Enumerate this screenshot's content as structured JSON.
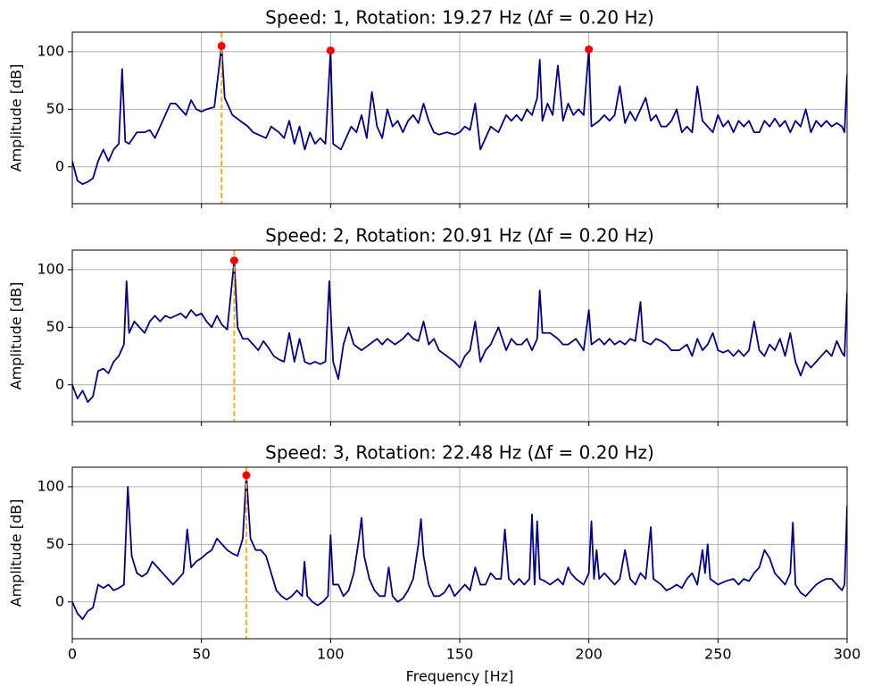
{
  "chart_data": [
    {
      "type": "line",
      "title": "Speed: 1, Rotation: 19.27 Hz (Δf = 0.20 Hz)",
      "ylabel": "Amplitude [dB]",
      "color": "#00008b",
      "x": [
        0,
        2,
        4,
        6,
        8,
        10,
        12,
        14,
        16,
        18,
        19.3,
        20.5,
        22,
        25,
        28,
        30,
        32,
        35,
        38,
        40,
        42,
        44,
        46,
        48,
        50,
        52,
        55,
        57.8,
        59,
        62,
        65,
        68,
        70,
        72,
        75,
        77,
        80,
        82,
        84,
        86,
        88,
        90,
        92,
        94,
        96,
        98,
        100,
        101,
        104,
        106,
        108,
        110,
        112,
        114,
        116,
        118,
        120,
        122,
        124,
        126,
        128,
        130,
        132,
        134,
        136,
        138,
        140,
        142,
        145,
        148,
        150,
        152,
        154,
        156,
        158,
        160,
        162,
        165,
        168,
        170,
        172,
        174,
        176,
        178,
        180,
        181,
        182,
        184,
        186,
        188,
        190,
        192,
        194,
        196,
        198,
        200,
        201,
        204,
        206,
        208,
        210,
        212,
        214,
        216,
        218,
        220,
        222,
        224,
        226,
        228,
        230,
        232,
        234,
        236,
        238,
        240,
        242,
        244,
        246,
        248,
        250,
        252,
        254,
        256,
        258,
        260,
        262,
        264,
        266,
        268,
        270,
        272,
        274,
        276,
        278,
        280,
        282,
        284,
        286,
        288,
        290,
        292,
        294,
        296,
        298,
        299,
        300
      ],
      "values": [
        5,
        -12,
        -15,
        -13,
        -10,
        5,
        15,
        5,
        15,
        20,
        85,
        22,
        20,
        30,
        30,
        32,
        25,
        40,
        55,
        55,
        50,
        45,
        58,
        50,
        48,
        50,
        52,
        105,
        60,
        45,
        40,
        35,
        30,
        28,
        25,
        35,
        30,
        25,
        40,
        20,
        35,
        15,
        30,
        20,
        25,
        20,
        101,
        20,
        15,
        25,
        35,
        30,
        45,
        25,
        65,
        35,
        25,
        50,
        35,
        40,
        30,
        40,
        45,
        38,
        55,
        40,
        30,
        28,
        30,
        28,
        30,
        35,
        32,
        55,
        15,
        25,
        35,
        30,
        45,
        40,
        45,
        40,
        50,
        45,
        60,
        93,
        40,
        55,
        45,
        88,
        40,
        55,
        45,
        50,
        45,
        102,
        35,
        40,
        45,
        40,
        45,
        70,
        38,
        48,
        40,
        50,
        60,
        40,
        45,
        35,
        35,
        40,
        50,
        30,
        35,
        30,
        70,
        40,
        35,
        30,
        45,
        35,
        40,
        30,
        40,
        35,
        40,
        30,
        30,
        40,
        35,
        42,
        35,
        40,
        30,
        40,
        35,
        50,
        30,
        40,
        35,
        40,
        35,
        38,
        35,
        30,
        80
      ],
      "markers": {
        "x": [
          57.8,
          100,
          200
        ],
        "values": [
          105,
          101,
          102
        ],
        "color": "red"
      },
      "vline": {
        "x": 57.8,
        "color": "orange"
      },
      "xlim": [
        0,
        300
      ],
      "ylim": [
        -32,
        117
      ],
      "xticks": [
        0,
        50,
        100,
        150,
        200,
        250,
        300
      ],
      "yticks": [
        0,
        50,
        100
      ],
      "grid": true,
      "xtick_labels": false
    },
    {
      "type": "line",
      "title": "Speed: 2, Rotation: 20.91 Hz (Δf = 0.20 Hz)",
      "ylabel": "Amplitude [dB]",
      "color": "#00008b",
      "x": [
        0,
        2,
        4,
        6,
        8,
        10,
        12,
        14,
        16,
        18,
        20,
        21,
        22,
        24,
        26,
        28,
        30,
        32,
        34,
        36,
        38,
        40,
        42,
        44,
        46,
        48,
        50,
        52,
        54,
        56,
        58,
        60,
        62.7,
        64,
        66,
        68,
        70,
        72,
        74,
        76,
        78,
        80,
        82,
        84,
        86,
        88,
        90,
        92,
        94,
        96,
        98,
        99.5,
        101,
        103,
        105,
        107,
        109,
        112,
        115,
        118,
        120,
        122,
        125,
        128,
        130,
        132,
        134,
        136,
        138,
        140,
        142,
        145,
        148,
        150,
        152,
        154,
        156,
        158,
        160,
        162,
        165,
        168,
        170,
        172,
        174,
        176,
        178,
        180,
        181,
        182,
        185,
        188,
        190,
        192,
        195,
        198,
        200,
        201,
        204,
        206,
        208,
        210,
        212,
        214,
        216,
        218,
        220,
        221,
        224,
        226,
        228,
        230,
        232,
        235,
        238,
        240,
        242,
        244,
        246,
        248,
        250,
        252,
        254,
        256,
        258,
        260,
        262,
        264,
        266,
        268,
        270,
        272,
        274,
        276,
        278,
        280,
        282,
        284,
        286,
        288,
        290,
        292,
        294,
        296,
        298,
        299,
        300
      ],
      "values": [
        0,
        -12,
        -5,
        -15,
        -10,
        12,
        14,
        10,
        20,
        25,
        35,
        90,
        45,
        55,
        50,
        45,
        55,
        60,
        55,
        60,
        58,
        60,
        62,
        58,
        65,
        60,
        62,
        55,
        50,
        60,
        52,
        48,
        108,
        50,
        40,
        40,
        35,
        30,
        38,
        32,
        25,
        22,
        20,
        45,
        20,
        40,
        20,
        18,
        20,
        18,
        20,
        90,
        20,
        5,
        35,
        50,
        35,
        30,
        35,
        40,
        35,
        40,
        35,
        40,
        45,
        40,
        38,
        55,
        35,
        40,
        30,
        25,
        20,
        15,
        25,
        30,
        55,
        20,
        30,
        35,
        50,
        30,
        40,
        35,
        35,
        40,
        30,
        40,
        82,
        45,
        45,
        40,
        35,
        35,
        40,
        30,
        65,
        35,
        40,
        35,
        40,
        35,
        38,
        35,
        40,
        38,
        72,
        38,
        35,
        40,
        38,
        35,
        30,
        30,
        35,
        25,
        40,
        30,
        35,
        45,
        30,
        28,
        30,
        25,
        30,
        25,
        30,
        55,
        30,
        25,
        35,
        30,
        40,
        25,
        45,
        20,
        8,
        20,
        15,
        20,
        25,
        30,
        25,
        38,
        28,
        25,
        80
      ],
      "markers": {
        "x": [
          62.7
        ],
        "values": [
          108
        ],
        "color": "red"
      },
      "vline": {
        "x": 62.7,
        "color": "orange"
      },
      "xlim": [
        0,
        300
      ],
      "ylim": [
        -32,
        117
      ],
      "xticks": [
        0,
        50,
        100,
        150,
        200,
        250,
        300
      ],
      "yticks": [
        0,
        50,
        100
      ],
      "grid": true,
      "xtick_labels": false
    },
    {
      "type": "line",
      "title": "Speed: 3, Rotation: 22.48 Hz (Δf = 0.20 Hz)",
      "ylabel": "Amplitude [dB]",
      "xlabel": "Frequency [Hz]",
      "color": "#00008b",
      "x": [
        0,
        2,
        4,
        6,
        8,
        10,
        12,
        14,
        16,
        18,
        20,
        21.5,
        23,
        25,
        27,
        29,
        31,
        33,
        35,
        37,
        39,
        41,
        43,
        44.5,
        46,
        48,
        50,
        52,
        54,
        56,
        58,
        60,
        62,
        64,
        66,
        67.4,
        69,
        71,
        73,
        75,
        77,
        79,
        81,
        83,
        85,
        87,
        89,
        89.9,
        91,
        93,
        95,
        97,
        99,
        100,
        101,
        103,
        105,
        107,
        109,
        111,
        112,
        113,
        115,
        117,
        119,
        121,
        122.5,
        124,
        126,
        128,
        130,
        132,
        134,
        135,
        136,
        138,
        140,
        142,
        144,
        146,
        148,
        150,
        152,
        154,
        156,
        158,
        160,
        162,
        164,
        166,
        167.5,
        169,
        171,
        173,
        175,
        177,
        178,
        179,
        180,
        181,
        183,
        185,
        188,
        190,
        192,
        193,
        195,
        198,
        200,
        201,
        202,
        203,
        204,
        206,
        208,
        210,
        212,
        214,
        216,
        218,
        220,
        222,
        224,
        225,
        228,
        230,
        232,
        234,
        236,
        238,
        240,
        242,
        244,
        245,
        246,
        247,
        250,
        253,
        256,
        258,
        260,
        262,
        264,
        266,
        268,
        270,
        272,
        274,
        276,
        278,
        279,
        280,
        282,
        284,
        286,
        288,
        290,
        292,
        294,
        296,
        298,
        299,
        300
      ],
      "values": [
        0,
        -10,
        -15,
        -8,
        -5,
        15,
        12,
        15,
        10,
        12,
        15,
        100,
        40,
        25,
        22,
        25,
        35,
        30,
        25,
        20,
        15,
        20,
        25,
        63,
        30,
        35,
        38,
        42,
        45,
        55,
        50,
        45,
        42,
        40,
        55,
        110,
        55,
        45,
        45,
        40,
        25,
        10,
        5,
        2,
        5,
        10,
        5,
        35,
        5,
        0,
        -3,
        0,
        5,
        58,
        15,
        15,
        5,
        10,
        25,
        55,
        73,
        40,
        20,
        10,
        5,
        5,
        30,
        5,
        0,
        3,
        10,
        20,
        50,
        72,
        40,
        15,
        5,
        5,
        8,
        15,
        5,
        10,
        15,
        10,
        30,
        15,
        15,
        25,
        20,
        20,
        63,
        20,
        15,
        20,
        15,
        20,
        76,
        15,
        70,
        20,
        18,
        15,
        20,
        15,
        30,
        25,
        20,
        15,
        25,
        70,
        20,
        45,
        20,
        25,
        20,
        15,
        20,
        45,
        20,
        15,
        25,
        20,
        65,
        20,
        15,
        10,
        12,
        15,
        12,
        20,
        25,
        15,
        45,
        25,
        50,
        20,
        15,
        18,
        20,
        15,
        20,
        18,
        25,
        30,
        45,
        38,
        25,
        20,
        15,
        25,
        69,
        15,
        8,
        5,
        10,
        15,
        18,
        20,
        20,
        15,
        10,
        15,
        83
      ],
      "markers": {
        "x": [
          67.4
        ],
        "values": [
          110
        ],
        "color": "red"
      },
      "vline": {
        "x": 67.4,
        "color": "orange"
      },
      "xlim": [
        0,
        300
      ],
      "ylim": [
        -32,
        117
      ],
      "xticks": [
        0,
        50,
        100,
        150,
        200,
        250,
        300
      ],
      "yticks": [
        0,
        50,
        100
      ],
      "grid": true,
      "xtick_labels": true
    }
  ]
}
